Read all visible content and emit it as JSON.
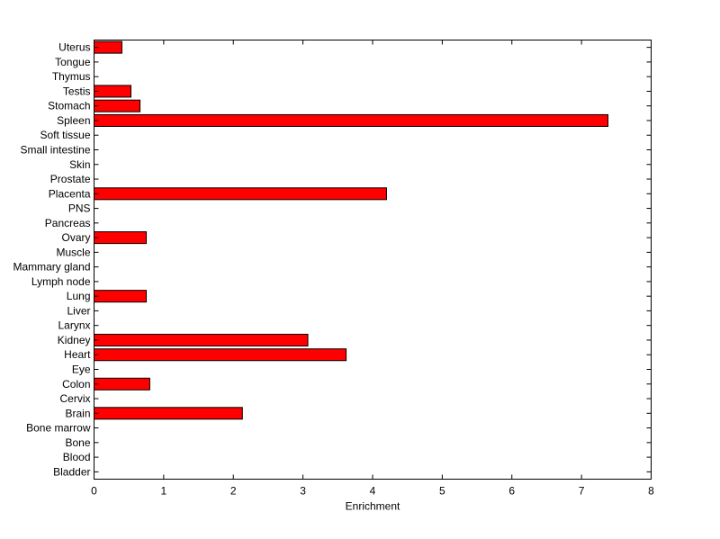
{
  "chart_data": {
    "type": "bar",
    "orientation": "horizontal",
    "xlabel": "Enrichment",
    "ylabel": "",
    "title": "",
    "xlim": [
      0,
      8
    ],
    "xticks": [
      0,
      1,
      2,
      3,
      4,
      5,
      6,
      7,
      8
    ],
    "categories": [
      "Uterus",
      "Tongue",
      "Thymus",
      "Testis",
      "Stomach",
      "Spleen",
      "Soft tissue",
      "Small intestine",
      "Skin",
      "Prostate",
      "Placenta",
      "PNS",
      "Pancreas",
      "Ovary",
      "Muscle",
      "Mammary gland",
      "Lymph node",
      "Lung",
      "Liver",
      "Larynx",
      "Kidney",
      "Heart",
      "Eye",
      "Colon",
      "Cervix",
      "Brain",
      "Bone marrow",
      "Bone",
      "Blood",
      "Bladder"
    ],
    "values": [
      0.4,
      0,
      0,
      0.53,
      0.66,
      7.38,
      0,
      0,
      0,
      0,
      4.2,
      0,
      0,
      0.75,
      0,
      0,
      0,
      0.75,
      0,
      0,
      3.07,
      3.62,
      0,
      0.8,
      0,
      2.13,
      0,
      0,
      0,
      0
    ],
    "grid": false,
    "bar_color": "#ff0000",
    "bar_edge_color": "#000000"
  }
}
